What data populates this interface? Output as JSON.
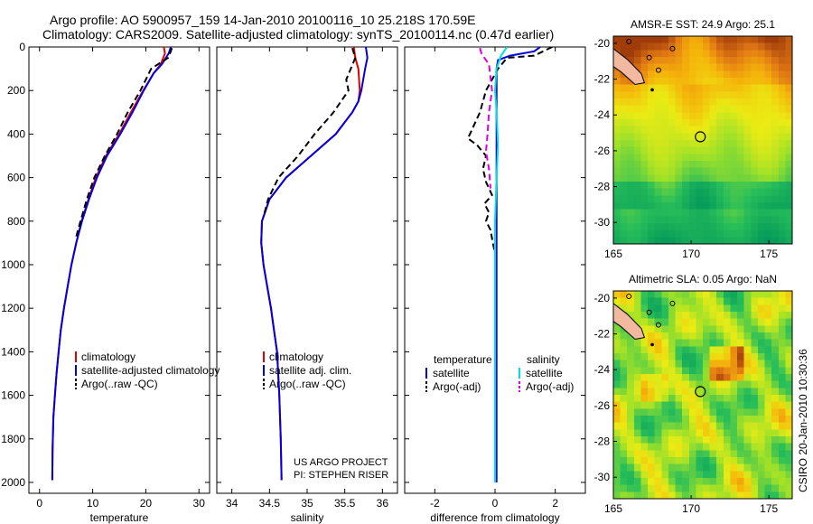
{
  "header": {
    "line1": "Argo profile: AO 5900957_159 14-Jan-2010 20100116_10 25.218S 170.59E",
    "line2": "Climatology: CARS2009. Satellite-adjusted climatology: synTS_20100114.nc (0.47d earlier)"
  },
  "credit": {
    "line1": "US ARGO PROJECT",
    "line2": "PI: STEPHEN RISER"
  },
  "side_label": "CSIRO 20-Jan-2010 10:30:36",
  "colors": {
    "climatology": "#e00000",
    "satellite": "#0000e0",
    "argo": "#000000",
    "sal_satellite": "#00e0e0",
    "sal_argo": "#e000e0",
    "coast": "#f2b8a0"
  },
  "chart_data": [
    {
      "type": "line",
      "id": "temperature",
      "xlabel": "temperature",
      "ylabel": "",
      "xlim": [
        -2,
        32
      ],
      "ylim": [
        2050,
        0
      ],
      "xticks": [
        0,
        10,
        20,
        30
      ],
      "yticks": [
        0,
        200,
        400,
        600,
        800,
        1000,
        1200,
        1400,
        1600,
        1800,
        2000
      ],
      "legend": {
        "position": "bottom-right",
        "entries": [
          "climatology",
          "satellite-adjusted climatology",
          "Argo(..raw -QC)"
        ]
      },
      "series": [
        {
          "name": "climatology",
          "color": "#e00000",
          "dash": false,
          "x": [
            23.4,
            23.6,
            22.8,
            21.5,
            19.5,
            17.2,
            15.0,
            12.5,
            10.6,
            9.2,
            7.9,
            6.9,
            6.0,
            5.3,
            4.6,
            4.0,
            3.6,
            3.2,
            2.9,
            2.6,
            2.45,
            2.4
          ],
          "y": [
            0,
            30,
            80,
            120,
            200,
            300,
            400,
            500,
            600,
            700,
            800,
            900,
            1000,
            1100,
            1200,
            1300,
            1400,
            1500,
            1600,
            1700,
            1850,
            1990
          ]
        },
        {
          "name": "satellite-adjusted climatology",
          "color": "#0000e0",
          "dash": false,
          "x": [
            24.7,
            24.3,
            23.0,
            21.5,
            19.6,
            17.5,
            15.2,
            12.7,
            10.8,
            9.3,
            8.0,
            6.9,
            6.0,
            5.3,
            4.6,
            4.0,
            3.6,
            3.2,
            2.9,
            2.6,
            2.45,
            2.4
          ],
          "y": [
            0,
            30,
            80,
            120,
            200,
            300,
            400,
            500,
            600,
            700,
            800,
            900,
            1000,
            1100,
            1200,
            1300,
            1400,
            1500,
            1600,
            1700,
            1850,
            1990
          ]
        },
        {
          "name": "Argo(..raw -QC)",
          "color": "#000000",
          "dash": true,
          "x": [
            24.9,
            24.7,
            24.2,
            21.0,
            19.0,
            16.6,
            14.6,
            12.3,
            10.3,
            8.9,
            7.7,
            6.8
          ],
          "y": [
            5,
            20,
            50,
            100,
            200,
            300,
            400,
            500,
            600,
            700,
            800,
            880
          ]
        }
      ]
    },
    {
      "type": "line",
      "id": "salinity",
      "xlabel": "salinity",
      "ylabel": "",
      "xlim": [
        33.8,
        36.2
      ],
      "ylim": [
        2050,
        0
      ],
      "xticks": [
        34,
        34.5,
        35,
        35.5,
        36
      ],
      "yticks": [
        0,
        200,
        400,
        600,
        800,
        1000,
        1200,
        1400,
        1600,
        1800,
        2000
      ],
      "legend": {
        "position": "bottom-right",
        "entries": [
          "climatology",
          "satellite adj. clim.",
          "Argo(..raw -QC)"
        ]
      },
      "series": [
        {
          "name": "climatology",
          "color": "#e00000",
          "dash": false,
          "x": [
            35.62,
            35.64,
            35.68,
            35.7,
            35.68,
            35.6,
            35.38,
            35.05,
            34.72,
            34.5,
            34.4,
            34.39,
            34.42,
            34.47,
            34.52,
            34.56,
            34.6,
            34.63,
            34.65,
            34.66
          ],
          "y": [
            0,
            50,
            100,
            200,
            250,
            300,
            400,
            500,
            600,
            700,
            800,
            900,
            1000,
            1100,
            1200,
            1300,
            1400,
            1600,
            1800,
            1990
          ]
        },
        {
          "name": "satellite adj. clim.",
          "color": "#0000e0",
          "dash": false,
          "x": [
            35.78,
            35.8,
            35.77,
            35.72,
            35.68,
            35.6,
            35.38,
            35.05,
            34.72,
            34.5,
            34.4,
            34.39,
            34.42,
            34.47,
            34.52,
            34.56,
            34.6,
            34.63,
            34.65,
            34.66
          ],
          "y": [
            0,
            50,
            100,
            200,
            250,
            300,
            400,
            500,
            600,
            700,
            800,
            900,
            1000,
            1100,
            1200,
            1300,
            1400,
            1600,
            1800,
            1990
          ]
        },
        {
          "name": "Argo(..raw -QC)",
          "color": "#000000",
          "dash": true,
          "x": [
            35.6,
            35.64,
            35.58,
            35.52,
            35.55,
            35.35,
            35.1,
            34.88,
            34.62,
            34.48,
            34.42
          ],
          "y": [
            5,
            50,
            100,
            150,
            200,
            300,
            400,
            500,
            600,
            700,
            780
          ]
        }
      ]
    },
    {
      "type": "line",
      "id": "difference",
      "xlabel": "difference from climatology",
      "ylabel": "",
      "xlim": [
        -3,
        3
      ],
      "ylim": [
        2050,
        0
      ],
      "xticks": [
        -2,
        0,
        2
      ],
      "yticks": [
        0,
        200,
        400,
        600,
        800,
        1000,
        1200,
        1400,
        1600,
        1800,
        2000
      ],
      "legend": {
        "position": "bottom",
        "temperature_title": "temperature",
        "salinity_title": "salinity",
        "entries": [
          "satellite",
          "Argo(-adj)",
          "satellite",
          "Argo(-adj)"
        ]
      },
      "series": [
        {
          "name": "temperature satellite",
          "color": "#0000e0",
          "dash": false,
          "x": [
            1.5,
            1.3,
            0.5,
            0.1,
            0.05,
            0.05,
            0.05,
            0.05,
            0.05,
            0.05,
            0.05,
            0.05,
            0.05,
            0.05,
            0.05,
            0.05
          ],
          "y": [
            0,
            20,
            40,
            60,
            100,
            150,
            300,
            500,
            800,
            1000,
            1200,
            1400,
            1500,
            1850,
            1900,
            2000
          ]
        },
        {
          "name": "temperature Argo(-adj)",
          "color": "#000000",
          "dash": true,
          "x": [
            1.9,
            1.6,
            1.3,
            0.4,
            0.1,
            -0.3,
            -0.5,
            -0.9,
            -0.6,
            -0.3,
            -0.4,
            -0.3,
            -0.1,
            -0.35,
            -0.2,
            -0.3,
            -0.15,
            -0.1,
            0.0
          ],
          "y": [
            0,
            20,
            40,
            50,
            100,
            200,
            300,
            420,
            450,
            500,
            560,
            620,
            680,
            720,
            760,
            800,
            840,
            880,
            950
          ]
        },
        {
          "name": "salinity satellite",
          "color": "#00e0e0",
          "dash": false,
          "x": [
            0.4,
            0.2,
            0.05,
            0.0,
            0.05,
            0.1,
            0.05,
            0.0,
            0.0,
            0.0,
            0.0
          ],
          "y": [
            0,
            40,
            100,
            200,
            300,
            450,
            600,
            800,
            1200,
            1600,
            2000
          ]
        },
        {
          "name": "salinity Argo(-adj)",
          "color": "#e000e0",
          "dash": true,
          "x": [
            -0.5,
            -0.45,
            -0.2,
            -0.1,
            -0.2,
            -0.25,
            -0.3,
            -0.2,
            -0.15
          ],
          "y": [
            5,
            30,
            80,
            200,
            300,
            400,
            480,
            560,
            650
          ]
        }
      ]
    }
  ],
  "maps": [
    {
      "title": "AMSR-E SST: 24.9  Argo: 25.1",
      "xticks": [
        "165",
        "170",
        "175"
      ],
      "yticks": [
        "-20",
        "-22",
        "-24",
        "-26",
        "-28",
        "-30"
      ],
      "xlim": [
        165,
        176.5
      ],
      "ylim": [
        -31.2,
        -19.6
      ],
      "marker": [
        170.59,
        -25.218
      ],
      "colormap": "sst"
    },
    {
      "title": "Altimetric SLA: 0.05  Argo: NaN",
      "xticks": [
        "165",
        "170",
        "175"
      ],
      "yticks": [
        "-20",
        "-22",
        "-24",
        "-26",
        "-28",
        "-30"
      ],
      "xlim": [
        165,
        176.5
      ],
      "ylim": [
        -31.2,
        -19.6
      ],
      "marker": [
        170.59,
        -25.218
      ],
      "colormap": "sla"
    }
  ]
}
